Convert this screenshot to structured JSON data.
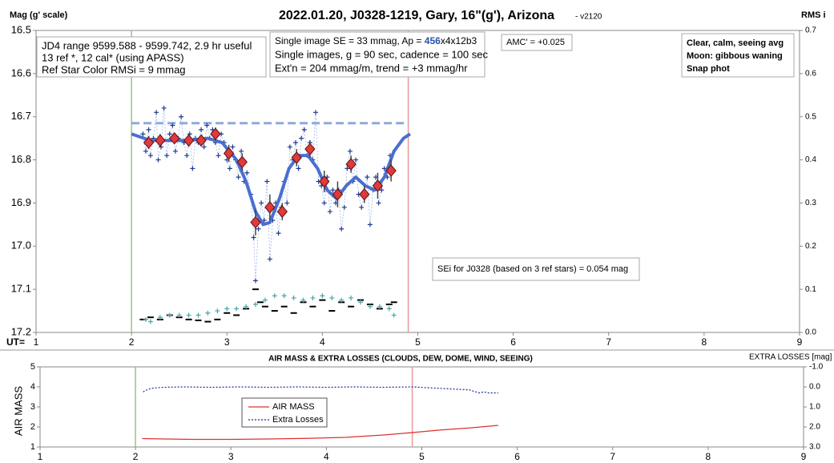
{
  "chart_data": [
    {
      "type": "scatter",
      "title": "2022.01.20, J0328-1219, Gary, 16\"(g'), Arizona",
      "subtitle": "- v2120",
      "ylabel": "Mag (g' scale)",
      "y2label": "RMS i",
      "xlabel": "UT=",
      "xlim": [
        1,
        9
      ],
      "xticks": [
        1,
        2,
        3,
        4,
        5,
        6,
        7,
        8,
        9
      ],
      "ylim": [
        16.5,
        17.2
      ],
      "y_inverted": true,
      "yticks": [
        16.5,
        16.6,
        16.7,
        16.8,
        16.9,
        {
          "value": 17,
          "label": "17.0"
        },
        17.1,
        17.2
      ],
      "y2lim": [
        0,
        0.7
      ],
      "y2ticks": [
        {
          "value": 0,
          "label": "0.0"
        },
        0.1,
        0.2,
        0.3,
        0.4,
        0.5,
        0.6,
        0.7
      ],
      "vlines": [
        {
          "x": 2,
          "color": "#9bc47a"
        },
        {
          "x": 4.9,
          "color": "#e89a9a"
        }
      ],
      "reference_line": {
        "value": 16.715,
        "x": [
          2,
          4.9
        ],
        "color": "#8fa8dc"
      },
      "series": [
        {
          "marker": "plus",
          "color": "#1f3a93",
          "x": [
            2.12,
            2.15,
            2.18,
            2.2,
            2.23,
            2.26,
            2.28,
            2.31,
            2.34,
            2.37,
            2.4,
            2.43,
            2.46,
            2.49,
            2.52,
            2.55,
            2.58,
            2.61,
            2.64,
            2.67,
            2.7,
            2.73,
            2.76,
            2.79,
            2.82,
            2.85,
            2.88,
            2.91,
            2.94,
            2.97,
            3.0,
            3.03,
            3.06,
            3.09,
            3.12,
            3.15,
            3.18,
            3.21,
            3.25,
            3.28,
            3.3,
            3.33,
            3.36,
            3.39,
            3.42,
            3.45,
            3.48,
            3.51,
            3.54,
            3.57,
            3.6,
            3.63,
            3.66,
            3.69,
            3.72,
            3.75,
            3.78,
            3.81,
            3.84,
            3.87,
            3.9,
            3.93,
            3.96,
            3.99,
            4.02,
            4.05,
            4.08,
            4.11,
            4.14,
            4.17,
            4.2,
            4.23,
            4.26,
            4.29,
            4.32,
            4.35,
            4.38,
            4.41,
            4.44,
            4.47,
            4.5,
            4.53,
            4.56,
            4.59,
            4.62,
            4.65,
            4.68,
            4.71
          ],
          "values": [
            16.74,
            16.78,
            16.73,
            16.79,
            16.75,
            16.69,
            16.8,
            16.77,
            16.68,
            16.79,
            16.74,
            16.72,
            16.78,
            16.75,
            16.7,
            16.76,
            16.79,
            16.74,
            16.82,
            16.75,
            16.76,
            16.73,
            16.77,
            16.72,
            16.75,
            16.73,
            16.76,
            16.79,
            16.74,
            16.76,
            16.8,
            16.82,
            16.77,
            16.8,
            16.84,
            16.78,
            16.85,
            16.83,
            16.88,
            16.98,
            17.08,
            16.96,
            16.9,
            16.94,
            16.85,
            17.03,
            16.94,
            16.9,
            16.97,
            16.91,
            16.85,
            16.9,
            16.77,
            16.8,
            16.76,
            16.82,
            16.75,
            16.73,
            16.79,
            16.76,
            16.8,
            16.69,
            16.85,
            16.86,
            16.9,
            16.84,
            16.92,
            16.87,
            16.9,
            16.87,
            16.96,
            16.91,
            16.82,
            16.78,
            16.85,
            16.8,
            16.88,
            16.91,
            16.88,
            16.84,
            16.95,
            16.87,
            16.84,
            16.9,
            16.87,
            16.82,
            16.84,
            16.79
          ]
        },
        {
          "marker": "line",
          "color": "#4a6fd0",
          "x": [
            2.0,
            2.2,
            2.4,
            2.6,
            2.8,
            2.95,
            3.1,
            3.2,
            3.3,
            3.38,
            3.45,
            3.55,
            3.65,
            3.75,
            3.85,
            3.95,
            4.05,
            4.15,
            4.25,
            4.35,
            4.45,
            4.55,
            4.65,
            4.75,
            4.85,
            4.92
          ],
          "values": [
            16.74,
            16.755,
            16.755,
            16.755,
            16.75,
            16.76,
            16.8,
            16.85,
            16.92,
            16.95,
            16.945,
            16.89,
            16.82,
            16.79,
            16.79,
            16.82,
            16.87,
            16.89,
            16.86,
            16.84,
            16.86,
            16.87,
            16.84,
            16.78,
            16.75,
            16.74
          ]
        },
        {
          "marker": "diamond",
          "color": "#e03a3a",
          "x": [
            2.18,
            2.3,
            2.45,
            2.6,
            2.73,
            2.88,
            3.02,
            3.16,
            3.3,
            3.45,
            3.58,
            3.73,
            3.87,
            4.02,
            4.16,
            4.3,
            4.44,
            4.58,
            4.72
          ],
          "values": [
            16.76,
            16.755,
            16.75,
            16.755,
            16.755,
            16.74,
            16.785,
            16.805,
            16.945,
            16.91,
            16.92,
            16.795,
            16.775,
            16.85,
            16.88,
            16.81,
            16.88,
            16.86,
            16.825
          ],
          "errors": [
            0.015,
            0.015,
            0.012,
            0.015,
            0.012,
            0.015,
            0.02,
            0.02,
            0.03,
            0.03,
            0.02,
            0.02,
            0.02,
            0.025,
            0.03,
            0.02,
            0.02,
            0.03,
            0.025
          ]
        },
        {
          "marker": "dash",
          "color": "#000000",
          "axis": "y2",
          "x": [
            2.12,
            2.2,
            2.3,
            2.4,
            2.5,
            2.6,
            2.7,
            2.8,
            2.9,
            3.0,
            3.1,
            3.2,
            3.3,
            3.35,
            3.4,
            3.5,
            3.6,
            3.7,
            3.8,
            3.9,
            4.0,
            4.1,
            4.2,
            4.3,
            4.4,
            4.5,
            4.6,
            4.7,
            4.75
          ],
          "values": [
            0.03,
            0.035,
            0.03,
            0.04,
            0.035,
            0.03,
            0.028,
            0.025,
            0.03,
            0.045,
            0.04,
            0.055,
            0.1,
            0.07,
            0.06,
            0.05,
            0.06,
            0.045,
            0.07,
            0.06,
            0.075,
            0.05,
            0.07,
            0.06,
            0.075,
            0.065,
            0.055,
            0.065,
            0.07
          ]
        },
        {
          "marker": "plus",
          "color": "#4aa3a8",
          "axis": "y2",
          "x": [
            2.15,
            2.2,
            2.3,
            2.4,
            2.5,
            2.6,
            2.7,
            2.8,
            2.9,
            3.0,
            3.1,
            3.2,
            3.3,
            3.4,
            3.5,
            3.6,
            3.7,
            3.8,
            3.9,
            4.0,
            4.1,
            4.2,
            4.3,
            4.4,
            4.5,
            4.6,
            4.7,
            4.75
          ],
          "values": [
            0.03,
            0.025,
            0.035,
            0.04,
            0.04,
            0.04,
            0.04,
            0.045,
            0.05,
            0.055,
            0.055,
            0.06,
            0.065,
            0.075,
            0.085,
            0.085,
            0.08,
            0.075,
            0.08,
            0.085,
            0.08,
            0.075,
            0.08,
            0.07,
            0.06,
            0.06,
            0.055,
            0.04
          ]
        }
      ],
      "annotations": [
        {
          "lines": [
            "JD4 range 9599.588 - 9599.742, 2.9 hr useful",
            "13 ref *, 12 cal* (using APASS)",
            "Ref Star Color RMSi = 9 mmag"
          ]
        },
        {
          "lines": [
            [
              {
                "text": "Single image SE = 33 mmag, Ap = "
              },
              {
                "text": "456",
                "color": "#2a52a8"
              },
              {
                "text": "x4x12b3"
              }
            ],
            "Single images, g = 90 sec, cadence = 100 sec",
            "Ext'n = 204 mmag/m, trend = +3 mmag/hr"
          ]
        },
        {
          "lines": [
            "AMC' = +0.025"
          ]
        },
        {
          "lines": [
            "Clear, calm, seeing avg",
            "Moon: gibbous waning",
            "Snap phot"
          ]
        },
        {
          "lines": [
            "SEi for J0328 (based on 3 ref stars) = 0.054 mag"
          ]
        }
      ]
    },
    {
      "type": "line",
      "title": "AIR MASS & EXTRA LOSSES (CLOUDS, DEW, DOME, WIND, SEEING)",
      "ylabel": "AIR MASS",
      "y2label": "EXTRA LOSSES [mag]",
      "xlim": [
        1,
        9
      ],
      "xticks": [
        1,
        2,
        3,
        4,
        5,
        6,
        7,
        8,
        9
      ],
      "ylim": [
        1,
        5
      ],
      "yticks": [
        1,
        2,
        3,
        4,
        5
      ],
      "y2lim": [
        -1,
        3
      ],
      "y2_inverted": true,
      "y2ticks": [
        {
          "value": -1,
          "label": "-1.0"
        },
        {
          "value": 0,
          "label": "0.0"
        },
        {
          "value": 1,
          "label": "1.0"
        },
        {
          "value": 2,
          "label": "2.0"
        },
        {
          "value": 3,
          "label": "3.0"
        }
      ],
      "vlines": [
        {
          "x": 2,
          "color": "#9bc47a"
        },
        {
          "x": 4.9,
          "color": "#e89a9a"
        }
      ],
      "series": [
        {
          "name": "AIR MASS",
          "color": "#e03030",
          "dash": false,
          "x": [
            2.07,
            2.3,
            2.6,
            3.0,
            3.4,
            3.8,
            4.2,
            4.6,
            4.9,
            5.2,
            5.5,
            5.8
          ],
          "values": [
            1.42,
            1.4,
            1.38,
            1.38,
            1.4,
            1.43,
            1.48,
            1.6,
            1.72,
            1.85,
            1.95,
            2.08
          ]
        },
        {
          "name": "Extra Losses",
          "color": "#1a2a9a",
          "dash": true,
          "axis": "y2",
          "x": [
            2.08,
            2.12,
            2.16,
            2.2,
            2.3,
            2.5,
            2.8,
            3.1,
            3.4,
            3.7,
            4.0,
            4.3,
            4.6,
            4.9,
            5.1,
            5.3,
            5.5,
            5.6,
            5.65,
            5.7,
            5.8
          ],
          "values": [
            0.25,
            0.15,
            0.08,
            0.05,
            0.02,
            0,
            0.02,
            0,
            0.02,
            0,
            0.02,
            0,
            0.02,
            0,
            0.05,
            0.1,
            0.15,
            0.3,
            0.25,
            0.3,
            0.3
          ]
        }
      ]
    }
  ]
}
